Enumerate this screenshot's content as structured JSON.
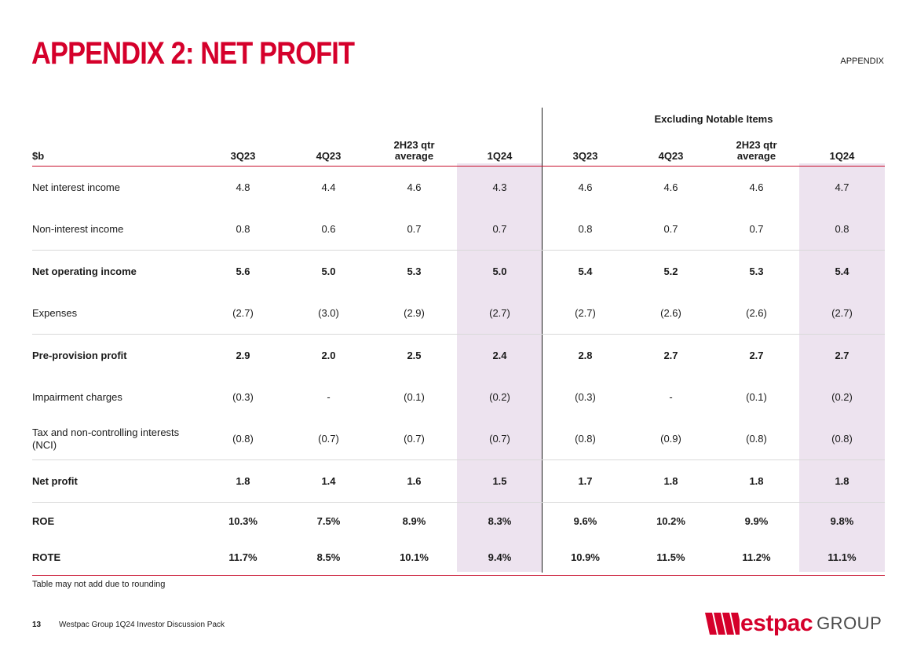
{
  "title": "APPENDIX 2: NET PROFIT",
  "section_tag": "APPENDIX",
  "table": {
    "group_header": "Excluding Notable Items",
    "columns": [
      {
        "line1": "$b",
        "line2": ""
      },
      {
        "line1": "3Q23",
        "line2": ""
      },
      {
        "line1": "4Q23",
        "line2": ""
      },
      {
        "line1": "2H23 qtr",
        "line2": "average"
      },
      {
        "line1": "1Q24",
        "line2": ""
      },
      {
        "line1": "3Q23",
        "line2": ""
      },
      {
        "line1": "4Q23",
        "line2": ""
      },
      {
        "line1": "2H23 qtr",
        "line2": "average"
      },
      {
        "line1": "1Q24",
        "line2": ""
      }
    ],
    "rows": [
      {
        "label": "Net interest income",
        "values": [
          "4.8",
          "4.4",
          "4.6",
          "4.3",
          "4.6",
          "4.6",
          "4.6",
          "4.7"
        ]
      },
      {
        "label": "Non-interest income",
        "values": [
          "0.8",
          "0.6",
          "0.7",
          "0.7",
          "0.8",
          "0.7",
          "0.7",
          "0.8"
        ]
      },
      {
        "label": "Net operating income",
        "values": [
          "5.6",
          "5.0",
          "5.3",
          "5.0",
          "5.4",
          "5.2",
          "5.3",
          "5.4"
        ]
      },
      {
        "label": "Expenses",
        "values": [
          "(2.7)",
          "(3.0)",
          "(2.9)",
          "(2.7)",
          "(2.7)",
          "(2.6)",
          "(2.6)",
          "(2.7)"
        ]
      },
      {
        "label": "Pre-provision profit",
        "values": [
          "2.9",
          "2.0",
          "2.5",
          "2.4",
          "2.8",
          "2.7",
          "2.7",
          "2.7"
        ]
      },
      {
        "label": "Impairment charges",
        "values": [
          "(0.3)",
          "-",
          "(0.1)",
          "(0.2)",
          "(0.3)",
          "-",
          "(0.1)",
          "(0.2)"
        ]
      },
      {
        "label": "Tax and non-controlling interests (NCI)",
        "values": [
          "(0.8)",
          "(0.7)",
          "(0.7)",
          "(0.7)",
          "(0.8)",
          "(0.9)",
          "(0.8)",
          "(0.8)"
        ]
      },
      {
        "label": "Net profit",
        "values": [
          "1.8",
          "1.4",
          "1.6",
          "1.5",
          "1.7",
          "1.8",
          "1.8",
          "1.8"
        ]
      },
      {
        "label": "ROE",
        "values": [
          "10.3%",
          "7.5%",
          "8.9%",
          "8.3%",
          "9.6%",
          "10.2%",
          "9.9%",
          "9.8%"
        ]
      },
      {
        "label": "ROTE",
        "values": [
          "11.7%",
          "8.5%",
          "10.1%",
          "9.4%",
          "10.9%",
          "11.5%",
          "11.2%",
          "11.1%"
        ]
      }
    ]
  },
  "note": "Table may not add due to rounding",
  "footer": {
    "page_number": "13",
    "text": "Westpac Group 1Q24 Investor Discussion Pack"
  },
  "logo": {
    "word": "estpac",
    "group": "GROUP"
  },
  "colors": {
    "brand_red": "#d5002b",
    "highlight": "#ede3ef"
  }
}
